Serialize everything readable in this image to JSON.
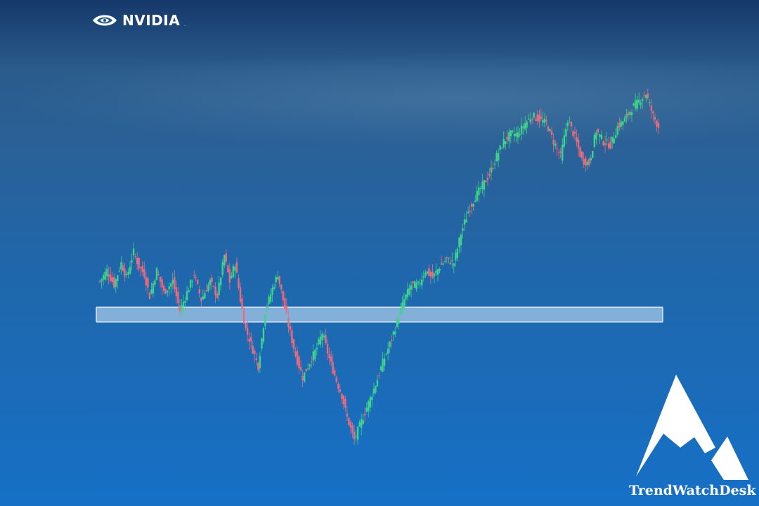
{
  "logo": {
    "name": "NVIDIA",
    "trademark": "."
  },
  "brand": {
    "name": "TrendWatchDesk"
  },
  "colors": {
    "up": "#3fd38b",
    "down": "#ef6b7b",
    "zone_fill": "rgba(215,235,250,0.55)",
    "zone_border": "rgba(235,245,255,0.85)",
    "text": "#ffffff"
  },
  "chart_data": {
    "type": "candlestick",
    "title": "",
    "xlabel": "",
    "ylabel": "",
    "ylim": [
      0,
      100
    ],
    "value_scale": "relative price (0 = chart bottom, 100 = top of plot)",
    "grid": false,
    "support_zone": {
      "low": 37,
      "high": 41
    },
    "anchors": [
      [
        0,
        48
      ],
      [
        4,
        51
      ],
      [
        8,
        47
      ],
      [
        12,
        53
      ],
      [
        15,
        49
      ],
      [
        19,
        56
      ],
      [
        22,
        52
      ],
      [
        25,
        50
      ],
      [
        28,
        44
      ],
      [
        32,
        51
      ],
      [
        36,
        45
      ],
      [
        41,
        48
      ],
      [
        45,
        40
      ],
      [
        49,
        45
      ],
      [
        53,
        50
      ],
      [
        57,
        43
      ],
      [
        62,
        48
      ],
      [
        66,
        44
      ],
      [
        70,
        55
      ],
      [
        73,
        48
      ],
      [
        76,
        53
      ],
      [
        79,
        43
      ],
      [
        82,
        35
      ],
      [
        85,
        31
      ],
      [
        89,
        25
      ],
      [
        93,
        40
      ],
      [
        97,
        46
      ],
      [
        100,
        50
      ],
      [
        103,
        43
      ],
      [
        106,
        36
      ],
      [
        110,
        28
      ],
      [
        114,
        22
      ],
      [
        118,
        26
      ],
      [
        122,
        30
      ],
      [
        125,
        34
      ],
      [
        129,
        27
      ],
      [
        133,
        21
      ],
      [
        136,
        17
      ],
      [
        139,
        11
      ],
      [
        143,
        5
      ],
      [
        147,
        10
      ],
      [
        151,
        15
      ],
      [
        155,
        20
      ],
      [
        159,
        26
      ],
      [
        163,
        31
      ],
      [
        167,
        37
      ],
      [
        171,
        43
      ],
      [
        175,
        47
      ],
      [
        179,
        47
      ],
      [
        183,
        51
      ],
      [
        187,
        49
      ],
      [
        191,
        52
      ],
      [
        195,
        54
      ],
      [
        199,
        53
      ],
      [
        203,
        61
      ],
      [
        207,
        67
      ],
      [
        211,
        71
      ],
      [
        215,
        74
      ],
      [
        219,
        77
      ],
      [
        223,
        82
      ],
      [
        227,
        86
      ],
      [
        231,
        88
      ],
      [
        235,
        88
      ],
      [
        239,
        91
      ],
      [
        243,
        93
      ],
      [
        247,
        92
      ],
      [
        251,
        91
      ],
      [
        255,
        86
      ],
      [
        259,
        82
      ],
      [
        263,
        92
      ],
      [
        267,
        87
      ],
      [
        271,
        81
      ],
      [
        275,
        80
      ],
      [
        279,
        89
      ],
      [
        283,
        86
      ],
      [
        287,
        85
      ],
      [
        291,
        90
      ],
      [
        295,
        92
      ],
      [
        299,
        95
      ],
      [
        303,
        97
      ],
      [
        307,
        99
      ],
      [
        311,
        93
      ],
      [
        314,
        90
      ]
    ],
    "candle_count": 315
  }
}
